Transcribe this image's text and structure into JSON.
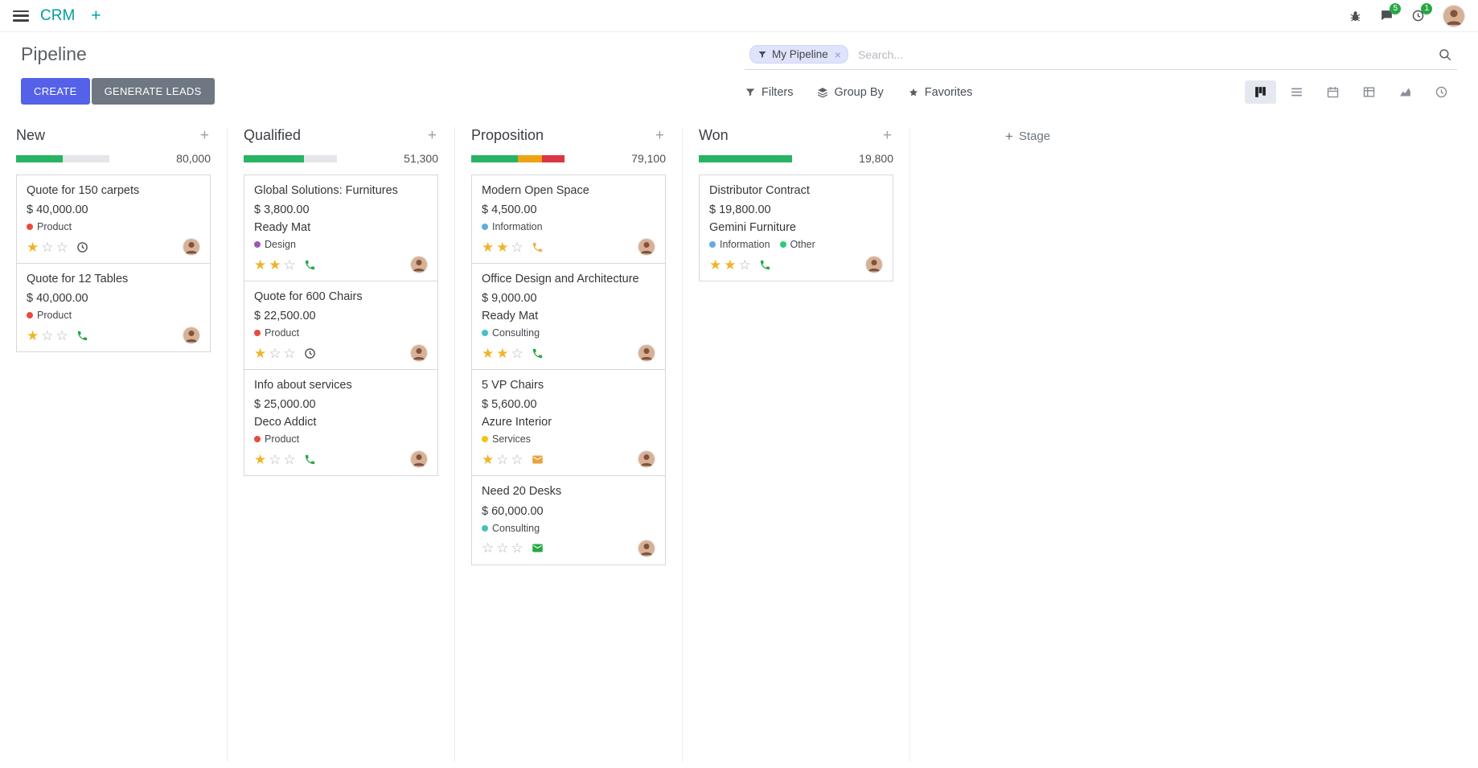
{
  "colors": {
    "primary": "#5461e8",
    "app-accent": "#00a09d",
    "success": "#28b463",
    "badge": "#28a745",
    "secondary-btn": "#6f7782"
  },
  "navbar": {
    "app_name": "CRM",
    "messages_badge": "5",
    "activities_badge": "1"
  },
  "control_panel": {
    "title": "Pipeline",
    "create_label": "CREATE",
    "generate_leads_label": "GENERATE LEADS",
    "search": {
      "facet_label": "My Pipeline",
      "placeholder": "Search..."
    },
    "menus": [
      {
        "label": "Filters"
      },
      {
        "label": "Group By"
      },
      {
        "label": "Favorites"
      }
    ],
    "views": [
      "kanban",
      "list",
      "calendar",
      "pivot",
      "graph",
      "activity"
    ],
    "active_view": "kanban"
  },
  "board": {
    "add_stage_label": "Stage",
    "columns": [
      {
        "name": "New",
        "total": "80,000",
        "progress": [
          {
            "color": "#28b463",
            "pct": 50
          }
        ],
        "cards": [
          {
            "title": "Quote for 150 carpets",
            "amount": "$ 40,000.00",
            "partner": "",
            "tags": [
              {
                "label": "Product",
                "color": "#e84c3d"
              }
            ],
            "stars": 1,
            "activity": {
              "icon": "clock",
              "color": "#495057"
            }
          },
          {
            "title": "Quote for 12 Tables",
            "amount": "$ 40,000.00",
            "partner": "",
            "tags": [
              {
                "label": "Product",
                "color": "#e84c3d"
              }
            ],
            "stars": 1,
            "activity": {
              "icon": "phone",
              "color": "#28a745"
            }
          }
        ]
      },
      {
        "name": "Qualified",
        "total": "51,300",
        "progress": [
          {
            "color": "#28b463",
            "pct": 65
          }
        ],
        "cards": [
          {
            "title": "Global Solutions: Furnitures",
            "amount": "$ 3,800.00",
            "partner": "Ready Mat",
            "tags": [
              {
                "label": "Design",
                "color": "#9b59b6"
              }
            ],
            "stars": 2,
            "activity": {
              "icon": "phone",
              "color": "#28a745"
            }
          },
          {
            "title": "Quote for 600 Chairs",
            "amount": "$ 22,500.00",
            "partner": "",
            "tags": [
              {
                "label": "Product",
                "color": "#e84c3d"
              }
            ],
            "stars": 1,
            "activity": {
              "icon": "clock",
              "color": "#495057"
            }
          },
          {
            "title": "Info about services",
            "amount": "$ 25,000.00",
            "partner": "Deco Addict",
            "tags": [
              {
                "label": "Product",
                "color": "#e84c3d"
              }
            ],
            "stars": 1,
            "activity": {
              "icon": "phone",
              "color": "#28a745"
            }
          }
        ]
      },
      {
        "name": "Proposition",
        "total": "79,100",
        "progress": [
          {
            "color": "#28b463",
            "pct": 50
          },
          {
            "color": "#eda413",
            "pct": 26
          },
          {
            "color": "#dc3545",
            "pct": 24
          }
        ],
        "cards": [
          {
            "title": "Modern Open Space",
            "amount": "$ 4,500.00",
            "partner": "",
            "tags": [
              {
                "label": "Information",
                "color": "#5dade2"
              }
            ],
            "stars": 2,
            "activity": {
              "icon": "phone",
              "color": "#f0ad4e"
            }
          },
          {
            "title": "Office Design and Architecture",
            "amount": "$ 9,000.00",
            "partner": "Ready Mat",
            "tags": [
              {
                "label": "Consulting",
                "color": "#48c0c0"
              }
            ],
            "stars": 2,
            "activity": {
              "icon": "phone",
              "color": "#28a745"
            }
          },
          {
            "title": "5 VP Chairs",
            "amount": "$ 5,600.00",
            "partner": "Azure Interior",
            "tags": [
              {
                "label": "Services",
                "color": "#f1c40f"
              }
            ],
            "stars": 1,
            "activity": {
              "icon": "envelope",
              "color": "#e8a33d"
            }
          },
          {
            "title": "Need 20 Desks",
            "amount": "$ 60,000.00",
            "partner": "",
            "tags": [
              {
                "label": "Consulting",
                "color": "#48c0c0"
              }
            ],
            "stars": 0,
            "activity": {
              "icon": "envelope",
              "color": "#28a745"
            }
          }
        ]
      },
      {
        "name": "Won",
        "total": "19,800",
        "progress": [
          {
            "color": "#28b463",
            "pct": 100
          }
        ],
        "cards": [
          {
            "title": "Distributor Contract",
            "amount": "$ 19,800.00",
            "partner": "Gemini Furniture",
            "tags": [
              {
                "label": "Information",
                "color": "#5dade2"
              },
              {
                "label": "Other",
                "color": "#2ecc71"
              }
            ],
            "stars": 2,
            "activity": {
              "icon": "phone",
              "color": "#28a745"
            }
          }
        ]
      }
    ]
  }
}
